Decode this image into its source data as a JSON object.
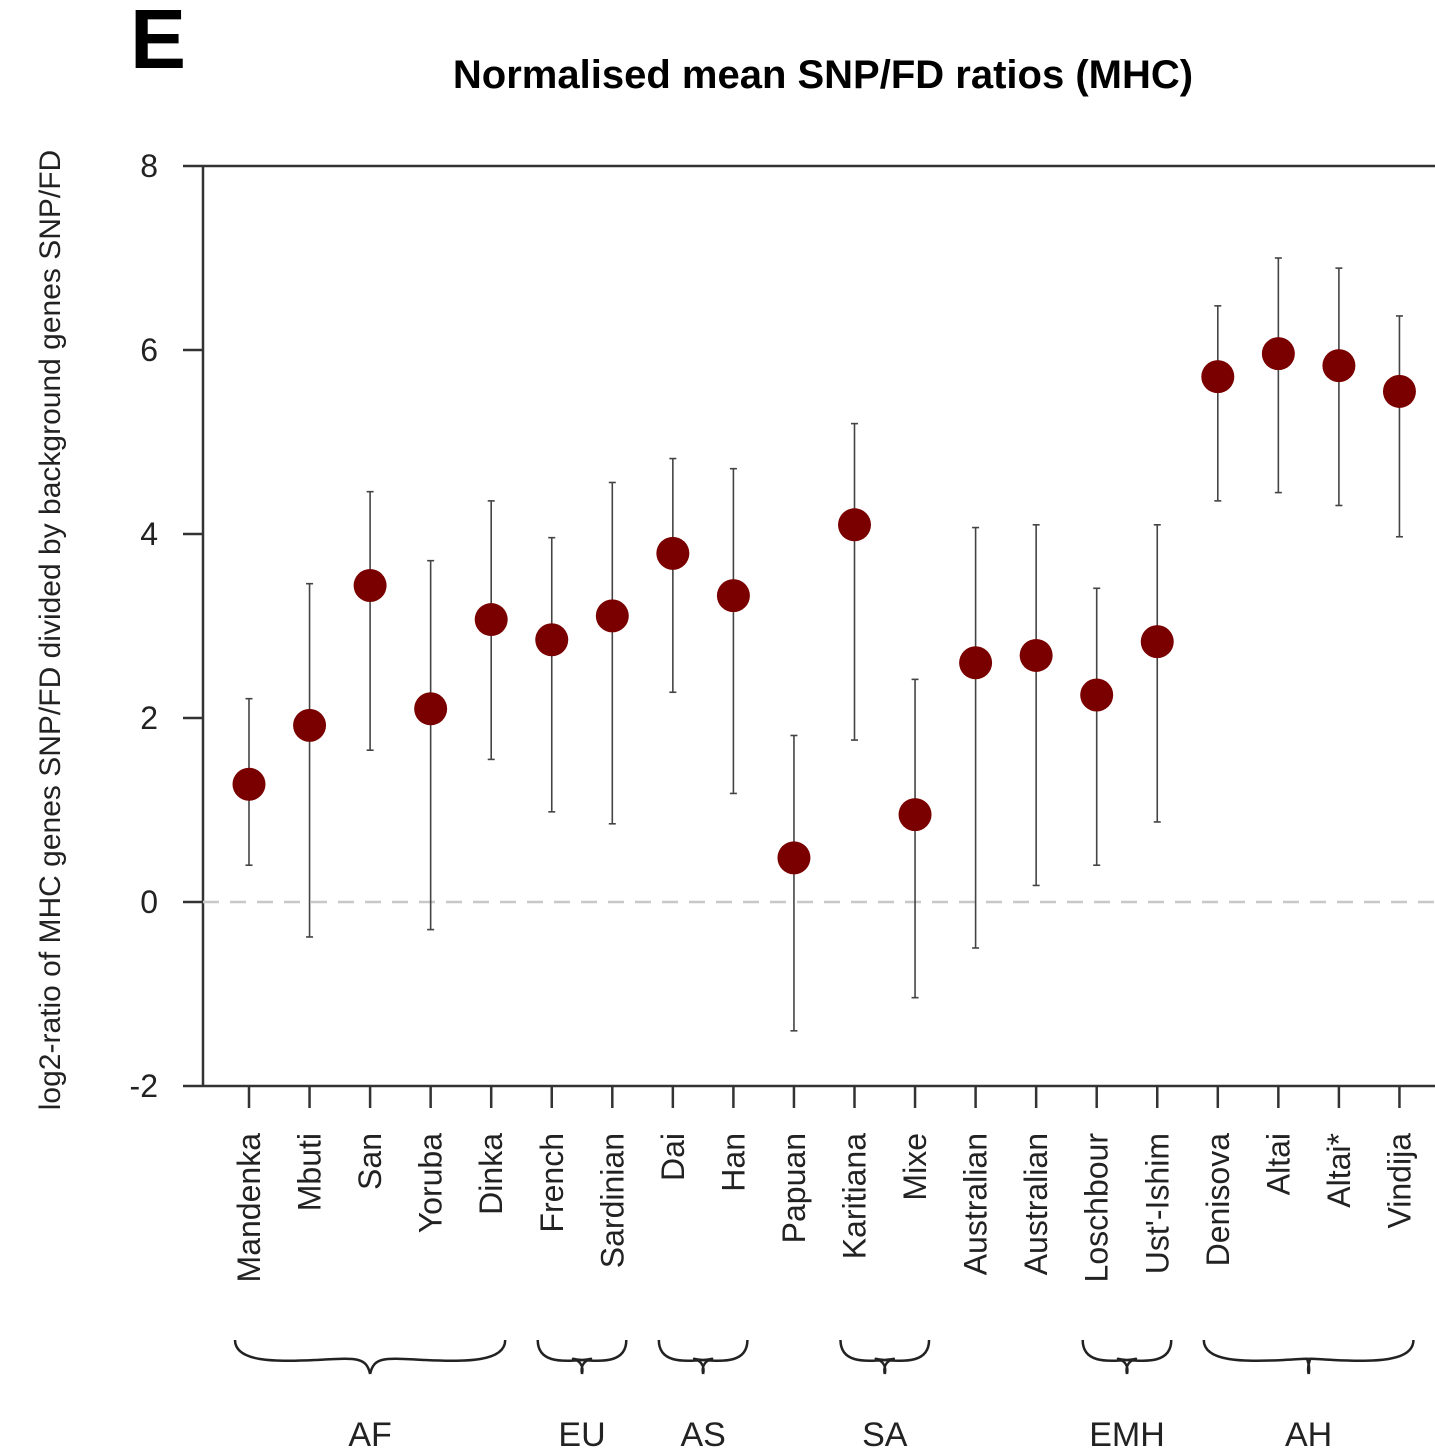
{
  "panel_letter": "E",
  "chart_data": {
    "type": "scatter",
    "title": "Normalised mean SNP/FD ratios (MHC)",
    "ylabel": "log2-ratio of MHC genes SNP/FD divided by background genes SNP/FD",
    "xlabel": "",
    "ylim": [
      -2,
      8
    ],
    "yticks": [
      -2,
      0,
      2,
      4,
      6,
      8
    ],
    "reference_line": {
      "y": 0,
      "style": "dashed",
      "color": "#c8c8c8"
    },
    "point_color": "#7a0000",
    "categories": [
      "Mandenka",
      "Mbuti",
      "San",
      "Yoruba",
      "Dinka",
      "French",
      "Sardinian",
      "Dai",
      "Han",
      "Papuan",
      "Karitiana",
      "Mixe",
      "Australian",
      "Australian",
      "Loschbour",
      "Ust'-Ishim",
      "Denisova",
      "Altai",
      "Altai*",
      "Vindija"
    ],
    "values": [
      1.28,
      1.92,
      3.44,
      2.1,
      3.07,
      2.85,
      3.11,
      3.79,
      3.33,
      0.48,
      4.1,
      0.95,
      2.6,
      2.68,
      2.25,
      2.83,
      5.71,
      5.96,
      5.83,
      5.55
    ],
    "error_low": [
      0.4,
      -0.38,
      1.65,
      -0.3,
      1.55,
      0.98,
      0.85,
      2.28,
      1.18,
      -1.4,
      1.76,
      -1.04,
      -0.5,
      0.18,
      0.4,
      0.87,
      4.36,
      4.45,
      4.31,
      3.97
    ],
    "error_high": [
      2.21,
      3.46,
      4.46,
      3.71,
      4.36,
      3.96,
      4.56,
      4.82,
      4.71,
      1.81,
      5.2,
      2.42,
      4.07,
      4.1,
      3.41,
      4.1,
      6.48,
      7.0,
      6.89,
      6.37
    ],
    "groups": [
      {
        "label": "AF",
        "start": 0,
        "end": 4
      },
      {
        "label": "EU",
        "start": 5,
        "end": 6
      },
      {
        "label": "AS",
        "start": 7,
        "end": 8
      },
      {
        "label": "SA",
        "start": 10,
        "end": 11
      },
      {
        "label": "EMH",
        "start": 14,
        "end": 15
      },
      {
        "label": "AH",
        "start": 16,
        "end": 19
      }
    ]
  }
}
